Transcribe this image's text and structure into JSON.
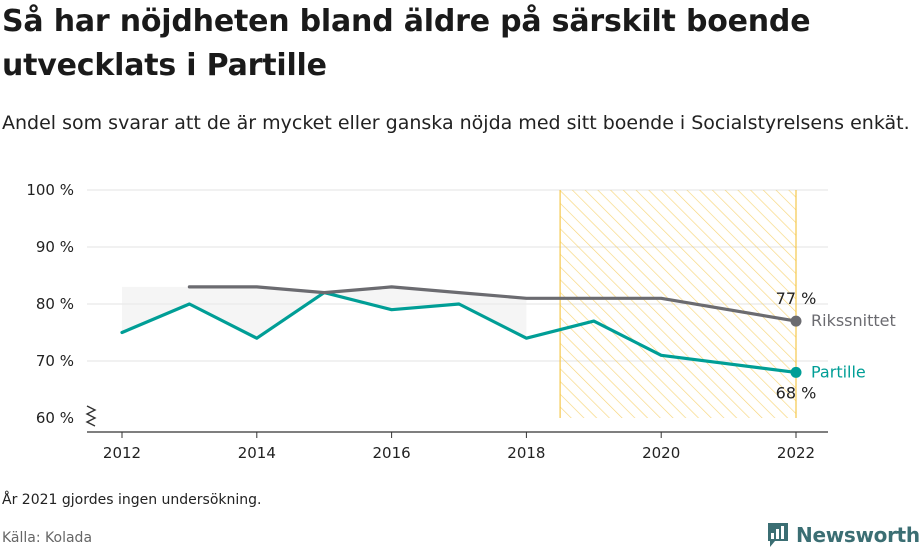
{
  "title": "Så har nöjdheten bland äldre på särskilt boende utvecklats i Partille",
  "subtitle": "Andel som svarar att de är mycket eller ganska nöjda med sitt boende i Socialstyrelsens enkät.",
  "note": "År 2021 gjordes ingen undersökning.",
  "source": "Källa: Kolada",
  "brand": {
    "name": "Newsworthy"
  },
  "colors": {
    "partille": "#009e96",
    "riket": "#6b6b70",
    "highlight": "#f5c84c",
    "grid": "#e3e3e3"
  },
  "chart_data": {
    "type": "line",
    "x_ticks": [
      "2012",
      "2014",
      "2016",
      "2018",
      "2020",
      "2022"
    ],
    "y_ticks": [
      "100 %",
      "90 %",
      "80 %",
      "70 %",
      "60 %"
    ],
    "y_tick_values": [
      100,
      90,
      80,
      70,
      60
    ],
    "x_tick_values": [
      2012,
      2014,
      2016,
      2018,
      2020,
      2022
    ],
    "xlim": [
      2011.5,
      2022.5
    ],
    "ylim": [
      60,
      100
    ],
    "y_axis_break": true,
    "highlight_range": [
      2018.5,
      2022
    ],
    "grid": true,
    "series": [
      {
        "name": "Partille",
        "end_label": "68 %",
        "x": [
          2012,
          2013,
          2014,
          2015,
          2016,
          2017,
          2018,
          2019,
          2020,
          2022
        ],
        "values": [
          75,
          80,
          74,
          82,
          79,
          80,
          74,
          77,
          71,
          68
        ]
      },
      {
        "name": "Rikssnittet",
        "end_label": "77 %",
        "x": [
          2013,
          2014,
          2015,
          2016,
          2017,
          2018,
          2019,
          2020,
          2022
        ],
        "values": [
          83,
          83,
          82,
          83,
          82,
          81,
          81,
          81,
          77
        ]
      }
    ]
  }
}
